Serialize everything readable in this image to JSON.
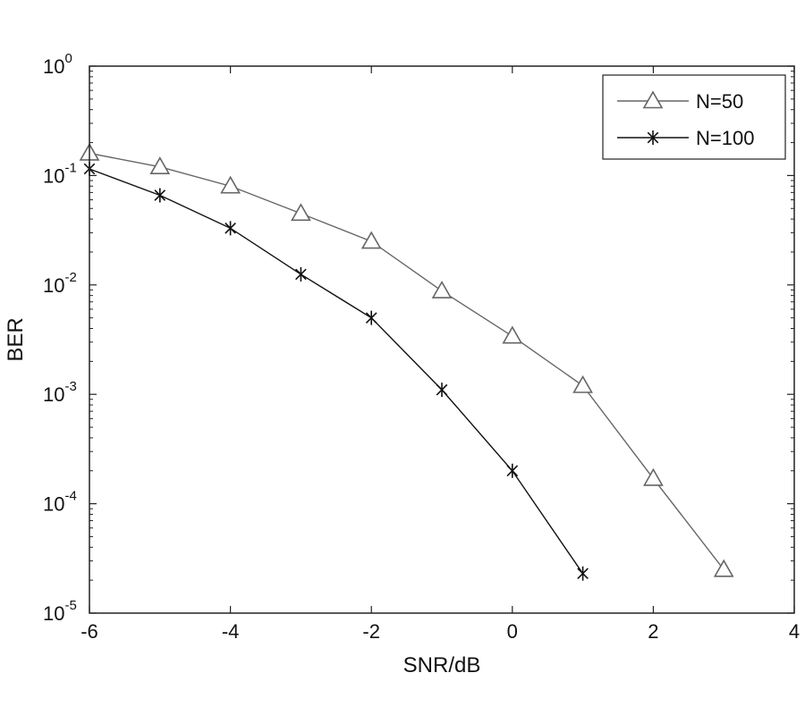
{
  "chart_data": {
    "type": "line",
    "title": "",
    "xlabel": "SNR/dB",
    "ylabel": "BER",
    "xlim": [
      -6,
      4
    ],
    "ylim": [
      1e-05,
      1
    ],
    "yscale": "log",
    "grid": false,
    "legend_position": "top-right",
    "x_ticks": [
      "-6",
      "-4",
      "-2",
      "0",
      "2",
      "4"
    ],
    "y_ticks": [
      {
        "base": "10",
        "exp": "-5"
      },
      {
        "base": "10",
        "exp": "-4"
      },
      {
        "base": "10",
        "exp": "-3"
      },
      {
        "base": "10",
        "exp": "-2"
      },
      {
        "base": "10",
        "exp": "-1"
      },
      {
        "base": "10",
        "exp": "0"
      }
    ],
    "series": [
      {
        "name": "N=50",
        "marker": "triangle",
        "color": "#666666",
        "x": [
          -6,
          -5,
          -4,
          -3,
          -2,
          -1,
          0,
          1,
          2,
          3
        ],
        "y": [
          0.16,
          0.12,
          0.08,
          0.045,
          0.025,
          0.0088,
          0.0034,
          0.0012,
          0.00017,
          2.5e-05
        ]
      },
      {
        "name": "N=100",
        "marker": "star",
        "color": "#111111",
        "x": [
          -6,
          -5,
          -4,
          -3,
          -2,
          -1,
          0,
          1
        ],
        "y": [
          0.115,
          0.066,
          0.033,
          0.0125,
          0.005,
          0.0011,
          0.0002,
          2.3e-05
        ]
      }
    ]
  }
}
